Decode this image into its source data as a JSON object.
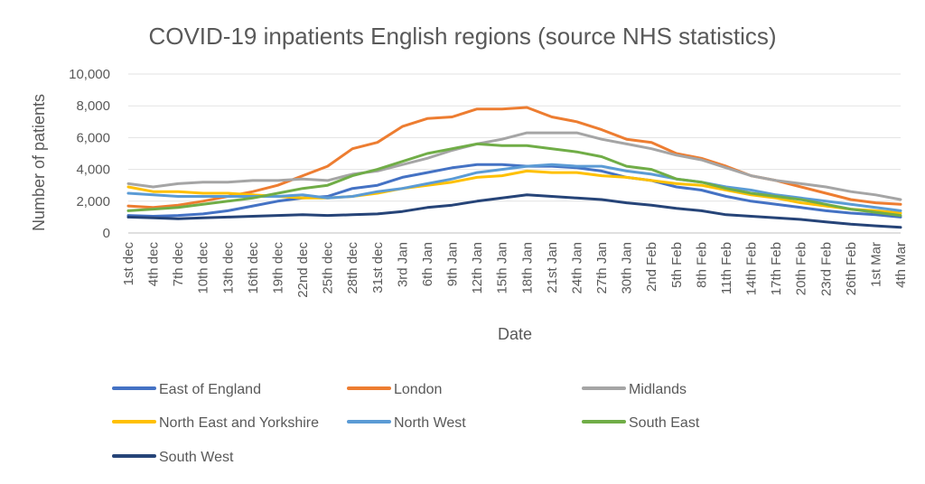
{
  "chart_data": {
    "type": "line",
    "title": "COVID-19 inpatients English regions (source NHS statistics)",
    "xlabel": "Date",
    "ylabel": "Number of patients",
    "ylim": [
      0,
      10000
    ],
    "yticks": [
      0,
      2000,
      4000,
      6000,
      8000,
      10000
    ],
    "ytick_labels": [
      "0",
      "2,000",
      "4,000",
      "6,000",
      "8,000",
      "10,000"
    ],
    "grid": "horizontal",
    "legend": "bottom",
    "x_tick_labels": [
      "1st dec",
      "4th dec",
      "7th dec",
      "10th dec",
      "13th dec",
      "16th dec",
      "19th dec",
      "22nd dec",
      "25th dec",
      "28th dec",
      "31st dec",
      "3rd Jan",
      "6th Jan",
      "9th Jan",
      "12th Jan",
      "15th Jan",
      "18th Jan",
      "21st Jan",
      "24th Jan",
      "27th Jan",
      "30th Jan",
      "2nd Feb",
      "5th Feb",
      "8th Feb",
      "11th Feb",
      "14th Feb",
      "17th Feb",
      "20th Feb",
      "23rd Feb",
      "26th Feb",
      "1st Mar",
      "4th Mar"
    ],
    "x_day_index": [
      0,
      3,
      6,
      9,
      12,
      15,
      18,
      21,
      24,
      27,
      30,
      33,
      36,
      39,
      42,
      45,
      48,
      51,
      54,
      57,
      60,
      63,
      66,
      69,
      72,
      75,
      78,
      81,
      84,
      87,
      90,
      93
    ],
    "series": [
      {
        "name": "East of England",
        "color": "#4472C4",
        "x": [
          0,
          3,
          6,
          9,
          12,
          15,
          18,
          21,
          24,
          27,
          30,
          33,
          36,
          39,
          42,
          45,
          48,
          51,
          54,
          57,
          60,
          63,
          66,
          69,
          72,
          75,
          78,
          81,
          84,
          87,
          90,
          93
        ],
        "values": [
          1100,
          1050,
          1100,
          1200,
          1400,
          1700,
          2000,
          2200,
          2300,
          2800,
          3000,
          3500,
          3800,
          4100,
          4300,
          4300,
          4200,
          4200,
          4100,
          3900,
          3500,
          3300,
          2900,
          2700,
          2300,
          2000,
          1800,
          1600,
          1400,
          1250,
          1150,
          1000
        ]
      },
      {
        "name": "London",
        "color": "#ED7D31",
        "x": [
          0,
          3,
          6,
          9,
          12,
          15,
          18,
          21,
          24,
          27,
          30,
          33,
          36,
          39,
          42,
          45,
          48,
          51,
          54,
          57,
          60,
          63,
          66,
          69,
          72,
          75,
          78,
          81,
          84,
          87,
          90,
          93
        ],
        "values": [
          1700,
          1600,
          1750,
          2000,
          2300,
          2600,
          3000,
          3600,
          4200,
          5300,
          5700,
          6700,
          7200,
          7300,
          7800,
          7800,
          7900,
          7300,
          7000,
          6500,
          5900,
          5700,
          5000,
          4700,
          4200,
          3600,
          3300,
          2900,
          2500,
          2100,
          1900,
          1800
        ]
      },
      {
        "name": "Midlands",
        "color": "#A5A5A5",
        "x": [
          0,
          3,
          6,
          9,
          12,
          15,
          18,
          21,
          24,
          27,
          30,
          33,
          36,
          39,
          42,
          45,
          48,
          51,
          54,
          57,
          60,
          63,
          66,
          69,
          72,
          75,
          78,
          81,
          84,
          87,
          90,
          93
        ],
        "values": [
          3100,
          2900,
          3100,
          3200,
          3200,
          3300,
          3300,
          3400,
          3300,
          3700,
          3900,
          4300,
          4700,
          5200,
          5600,
          5900,
          6300,
          6300,
          6300,
          5900,
          5600,
          5300,
          4900,
          4600,
          4100,
          3600,
          3300,
          3100,
          2900,
          2600,
          2400,
          2100
        ]
      },
      {
        "name": "North East and Yorkshire",
        "color": "#FFC000",
        "x": [
          0,
          3,
          6,
          9,
          12,
          15,
          18,
          21,
          24,
          27,
          30,
          33,
          36,
          39,
          42,
          45,
          48,
          51,
          54,
          57,
          60,
          63,
          66,
          69,
          72,
          75,
          78,
          81,
          84,
          87,
          90,
          93
        ],
        "values": [
          2900,
          2600,
          2600,
          2500,
          2500,
          2400,
          2300,
          2200,
          2200,
          2300,
          2500,
          2800,
          3000,
          3200,
          3500,
          3600,
          3900,
          3800,
          3800,
          3600,
          3500,
          3300,
          3100,
          3000,
          2700,
          2400,
          2200,
          1900,
          1700,
          1500,
          1400,
          1250
        ]
      },
      {
        "name": "North West",
        "color": "#5B9BD5",
        "x": [
          0,
          3,
          6,
          9,
          12,
          15,
          18,
          21,
          24,
          27,
          30,
          33,
          36,
          39,
          42,
          45,
          48,
          51,
          54,
          57,
          60,
          63,
          66,
          69,
          72,
          75,
          78,
          81,
          84,
          87,
          90,
          93
        ],
        "values": [
          2500,
          2400,
          2300,
          2300,
          2300,
          2300,
          2300,
          2400,
          2200,
          2300,
          2600,
          2800,
          3100,
          3400,
          3800,
          4000,
          4200,
          4300,
          4200,
          4200,
          3900,
          3700,
          3400,
          3200,
          2900,
          2700,
          2400,
          2200,
          2000,
          1800,
          1600,
          1400
        ]
      },
      {
        "name": "South East",
        "color": "#70AD47",
        "x": [
          0,
          3,
          6,
          9,
          12,
          15,
          18,
          21,
          24,
          27,
          30,
          33,
          36,
          39,
          42,
          45,
          48,
          51,
          54,
          57,
          60,
          63,
          66,
          69,
          72,
          75,
          78,
          81,
          84,
          87,
          90,
          93
        ],
        "values": [
          1400,
          1500,
          1600,
          1800,
          2000,
          2200,
          2500,
          2800,
          3000,
          3600,
          4000,
          4500,
          5000,
          5300,
          5600,
          5500,
          5500,
          5300,
          5100,
          4800,
          4200,
          4000,
          3400,
          3200,
          2800,
          2500,
          2300,
          2100,
          1800,
          1500,
          1300,
          1100
        ]
      },
      {
        "name": "South West",
        "color": "#264478",
        "x": [
          0,
          3,
          6,
          9,
          12,
          15,
          18,
          21,
          24,
          27,
          30,
          33,
          36,
          39,
          42,
          45,
          48,
          51,
          54,
          57,
          60,
          63,
          66,
          69,
          72,
          75,
          78,
          81,
          84,
          87,
          90,
          93
        ],
        "values": [
          1000,
          950,
          900,
          950,
          1000,
          1050,
          1100,
          1150,
          1100,
          1150,
          1200,
          1350,
          1600,
          1750,
          2000,
          2200,
          2400,
          2300,
          2200,
          2100,
          1900,
          1750,
          1550,
          1400,
          1150,
          1050,
          950,
          850,
          700,
          550,
          450,
          350
        ]
      }
    ]
  }
}
